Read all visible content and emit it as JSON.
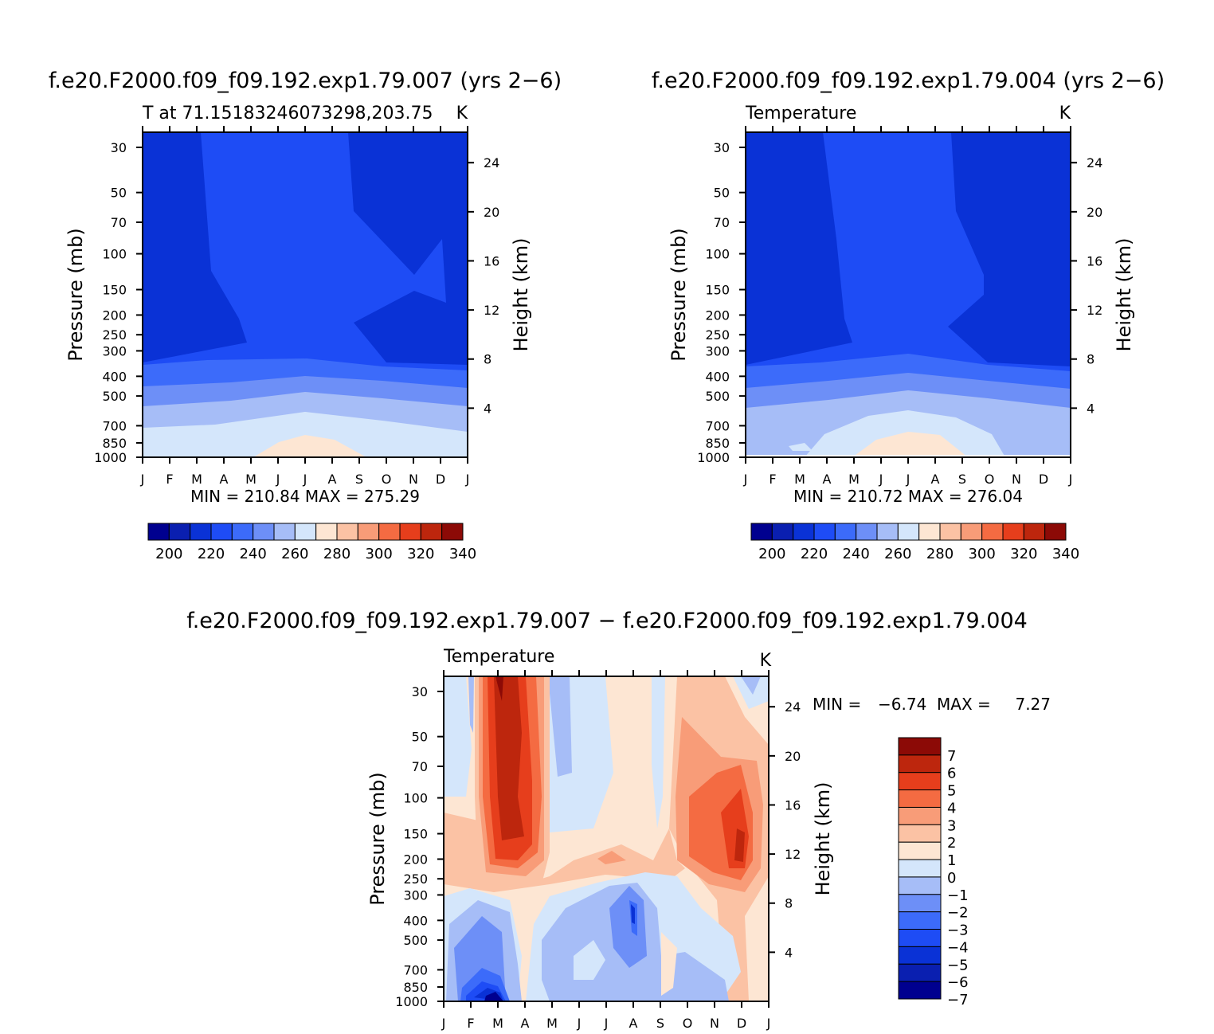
{
  "colors": {
    "temp_scale": [
      "#00008f",
      "#0a1fb0",
      "#0a32d6",
      "#1e4cf5",
      "#3c6bfa",
      "#6d8ff7",
      "#a6bdf7",
      "#d4e6fb",
      "#fde6d3",
      "#fbc2a4",
      "#f89c78",
      "#f46b42",
      "#e63e1c",
      "#bd260d",
      "#8c0a06"
    ],
    "diff_scale": [
      "#00008f",
      "#0a1fb0",
      "#0a32d6",
      "#1e4cf5",
      "#3c6bfa",
      "#6d8ff7",
      "#a6bdf7",
      "#d4e6fb",
      "#fde6d3",
      "#fbc2a4",
      "#f89c78",
      "#f46b42",
      "#e63e1c",
      "#bd260d",
      "#8c0a06"
    ]
  },
  "chart_data": [
    {
      "type": "contour",
      "title": "f.e20.F2000.f09_f09.192.exp1.79.007 (yrs 2−6)",
      "subtitle_left": "T at 71.15183246073298,203.75",
      "subtitle_right": "K",
      "xlabel": "",
      "ylabel": "Pressure (mb)",
      "ylabel_right": "Height (km)",
      "x_ticks": [
        "J",
        "F",
        "M",
        "A",
        "M",
        "J",
        "J",
        "A",
        "S",
        "O",
        "N",
        "D",
        "J"
      ],
      "y_ticks": [
        "30",
        "50",
        "70",
        "100",
        "150",
        "200",
        "250",
        "300",
        "400",
        "500",
        "700",
        "850",
        "1000"
      ],
      "y_ticks_right": [
        "24",
        "20",
        "16",
        "12",
        "8",
        "4"
      ],
      "stats": "MIN = 210.84  MAX = 275.29",
      "min": 210.84,
      "max": 275.29,
      "colorbar_labels": [
        "200",
        "220",
        "240",
        "260",
        "280",
        "300",
        "320",
        "340"
      ],
      "levels": [
        200,
        210,
        220,
        230,
        240,
        250,
        260,
        270,
        280,
        290,
        300,
        310,
        320,
        330,
        340
      ]
    },
    {
      "type": "contour",
      "title": "f.e20.F2000.f09_f09.192.exp1.79.004 (yrs 2−6)",
      "subtitle_left": "Temperature",
      "subtitle_right": "K",
      "xlabel": "",
      "ylabel": "Pressure (mb)",
      "ylabel_right": "Height (km)",
      "x_ticks": [
        "J",
        "F",
        "M",
        "A",
        "M",
        "J",
        "J",
        "A",
        "S",
        "O",
        "N",
        "D",
        "J"
      ],
      "y_ticks": [
        "30",
        "50",
        "70",
        "100",
        "150",
        "200",
        "250",
        "300",
        "400",
        "500",
        "700",
        "850",
        "1000"
      ],
      "y_ticks_right": [
        "24",
        "20",
        "16",
        "12",
        "8",
        "4"
      ],
      "stats": "MIN = 210.72  MAX = 276.04",
      "min": 210.72,
      "max": 276.04,
      "colorbar_labels": [
        "200",
        "220",
        "240",
        "260",
        "280",
        "300",
        "320",
        "340"
      ],
      "levels": [
        200,
        210,
        220,
        230,
        240,
        250,
        260,
        270,
        280,
        290,
        300,
        310,
        320,
        330,
        340
      ]
    },
    {
      "type": "contour",
      "title": "f.e20.F2000.f09_f09.192.exp1.79.007 − f.e20.F2000.f09_f09.192.exp1.79.004",
      "subtitle_left": "Temperature",
      "subtitle_right": "K",
      "xlabel": "",
      "ylabel": "Pressure (mb)",
      "ylabel_right": "Height (km)",
      "x_ticks": [
        "J",
        "F",
        "M",
        "A",
        "M",
        "J",
        "J",
        "A",
        "S",
        "O",
        "N",
        "D",
        "J"
      ],
      "y_ticks": [
        "30",
        "50",
        "70",
        "100",
        "150",
        "200",
        "250",
        "300",
        "400",
        "500",
        "700",
        "850",
        "1000"
      ],
      "y_ticks_right": [
        "24",
        "20",
        "16",
        "12",
        "8",
        "4"
      ],
      "stats_min_label": "MIN =",
      "stats_min_value": "−6.74",
      "stats_max_label": "MAX =",
      "stats_max_value": "7.27",
      "min": -6.74,
      "max": 7.27,
      "colorbar_labels": [
        "7",
        "6",
        "5",
        "4",
        "3",
        "2",
        "1",
        "0",
        "−1",
        "−2",
        "−3",
        "−4",
        "−5",
        "−6",
        "−7"
      ],
      "levels": [
        -7,
        -6,
        -5,
        -4,
        -3,
        -2,
        -1,
        0,
        1,
        2,
        3,
        4,
        5,
        6,
        7
      ]
    }
  ]
}
